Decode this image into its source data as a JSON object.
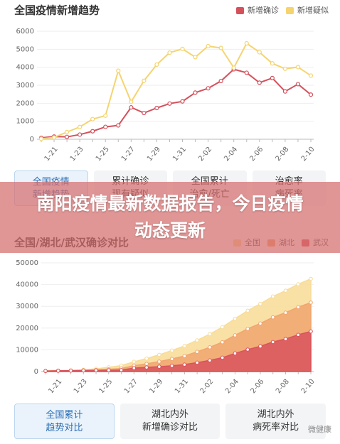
{
  "chart_data": [
    {
      "type": "line",
      "title": "全国疫情新增趋势",
      "categories": [
        null,
        "1-21",
        null,
        "1-23",
        null,
        "1-25",
        null,
        "1-27",
        null,
        "1-29",
        null,
        "1-31",
        null,
        "2-02",
        null,
        "2-04",
        null,
        "2-06",
        null,
        "2-08",
        null,
        "2-10"
      ],
      "series": [
        {
          "name": "新增确诊",
          "color": "#d4515c",
          "values": [
            77,
            149,
            131,
            259,
            444,
            688,
            769,
            1771,
            1459,
            1737,
            1982,
            2102,
            2590,
            2829,
            3235,
            3887,
            3694,
            3143,
            3399,
            2656,
            3062,
            2478
          ]
        },
        {
          "name": "新增疑似",
          "color": "#f5d470",
          "values": [
            27,
            100,
            400,
            680,
            1118,
            1309,
            3806,
            2077,
            3248,
            4148,
            4812,
            5019,
            4562,
            5173,
            5072,
            3971,
            5328,
            4833,
            4214,
            3916,
            4008,
            3536
          ]
        }
      ],
      "ylim": [
        0,
        6000
      ],
      "yticks": [
        0,
        1000,
        2000,
        3000,
        4000,
        5000,
        6000
      ],
      "grid": true,
      "legend": "top-right"
    },
    {
      "type": "area",
      "title": "全国/湖北/武汉确诊对比",
      "categories": [
        null,
        "1-21",
        null,
        "1-23",
        null,
        "1-25",
        null,
        "1-27",
        null,
        "1-29",
        null,
        "1-31",
        null,
        "2-02",
        null,
        "2-04",
        null,
        "2-06",
        null,
        "2-08",
        null,
        "2-10"
      ],
      "series": [
        {
          "name": "全国",
          "color": "#f8dc96",
          "values": [
            291,
            440,
            571,
            830,
            1287,
            1975,
            2744,
            4515,
            5974,
            7711,
            9692,
            11791,
            14380,
            17205,
            20438,
            24324,
            28018,
            31161,
            34546,
            37198,
            40171,
            42638
          ]
        },
        {
          "name": "湖北",
          "color": "#f1a56f",
          "values": [
            270,
            375,
            444,
            549,
            729,
            1052,
            1423,
            2714,
            3554,
            4586,
            5806,
            7153,
            9074,
            11177,
            13522,
            16678,
            19665,
            22112,
            24953,
            27100,
            29631,
            31728
          ]
        },
        {
          "name": "武汉",
          "color": "#d9535c",
          "values": [
            258,
            363,
            425,
            495,
            572,
            618,
            698,
            1590,
            1905,
            2261,
            2639,
            3215,
            4109,
            5142,
            6384,
            8351,
            10117,
            11618,
            13603,
            14982,
            16902,
            18454
          ]
        }
      ],
      "ylim": [
        0,
        50000
      ],
      "yticks": [
        0,
        10000,
        20000,
        30000,
        40000,
        50000
      ],
      "grid": true,
      "legend": "top-right"
    }
  ],
  "tabs": [
    [
      [
        "全国疫情",
        "新增趋势"
      ],
      [
        "累计确诊",
        "现有疑似"
      ],
      [
        "全国累计",
        "治愈/死亡"
      ],
      [
        "治愈率",
        "病死率"
      ]
    ],
    [
      [
        "全国累计",
        "趋势对比"
      ],
      [
        "湖北内外",
        "新增确诊对比"
      ],
      [
        "湖北内外",
        "病死率对比"
      ]
    ]
  ],
  "selected_tabs": [
    0,
    0
  ],
  "banner": "南阳疫情最新数据报告，今日疫情动态更新",
  "watermark": "微健康"
}
